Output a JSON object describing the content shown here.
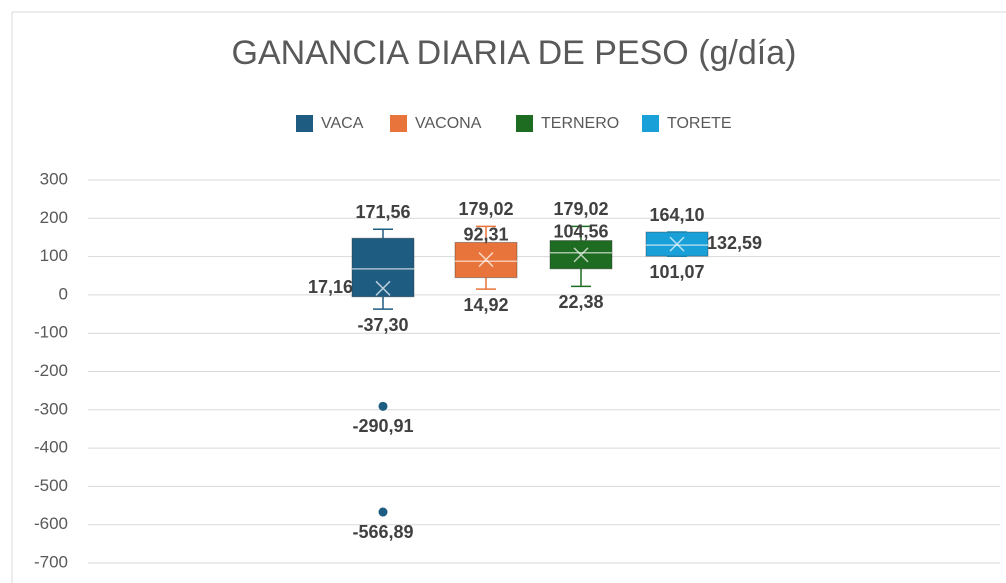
{
  "chart_data": {
    "type": "box",
    "title": "GANANCIA DIARIA DE PESO (g/día)",
    "ylim": [
      -700,
      300
    ],
    "yticks": [
      -700,
      -600,
      -500,
      -400,
      -300,
      -200,
      -100,
      0,
      100,
      200,
      300
    ],
    "grid": true,
    "legend": "top",
    "series": [
      {
        "name": "VACA",
        "color": "#1f5c82",
        "min": -37.3,
        "q1": -5,
        "median": 68,
        "q3": 148,
        "max": 171.56,
        "mean": 17.16,
        "outliers": [
          -290.91,
          -566.89
        ],
        "value_labels": {
          "min": "-37,30",
          "max": "171,56",
          "mean": "17,16"
        },
        "outlier_labels": [
          "-290,91",
          "-566,89"
        ]
      },
      {
        "name": "VACONA",
        "color": "#e8743b",
        "min": 14.92,
        "q1": 45,
        "median": 88,
        "q3": 137,
        "max": 179.02,
        "mean": 92.31,
        "outliers": [],
        "value_labels": {
          "min": "14,92",
          "max": "179,02",
          "mean": "92,31"
        },
        "outlier_labels": []
      },
      {
        "name": "TERNERO",
        "color": "#1e6b22",
        "min": 22.38,
        "q1": 68,
        "median": 110,
        "q3": 142,
        "max": 179.02,
        "mean": 104.56,
        "outliers": [],
        "value_labels": {
          "min": "22,38",
          "max": "179,02",
          "mean": "104,56"
        },
        "outlier_labels": []
      },
      {
        "name": "TORETE",
        "color": "#1aa0d8",
        "min": 101.07,
        "q1": 101.07,
        "median": 130,
        "q3": 164.1,
        "max": 164.1,
        "mean": 132.59,
        "outliers": [],
        "value_labels": {
          "min": "101,07",
          "max": "164,10",
          "mean": "132,59"
        },
        "outlier_labels": []
      }
    ]
  }
}
